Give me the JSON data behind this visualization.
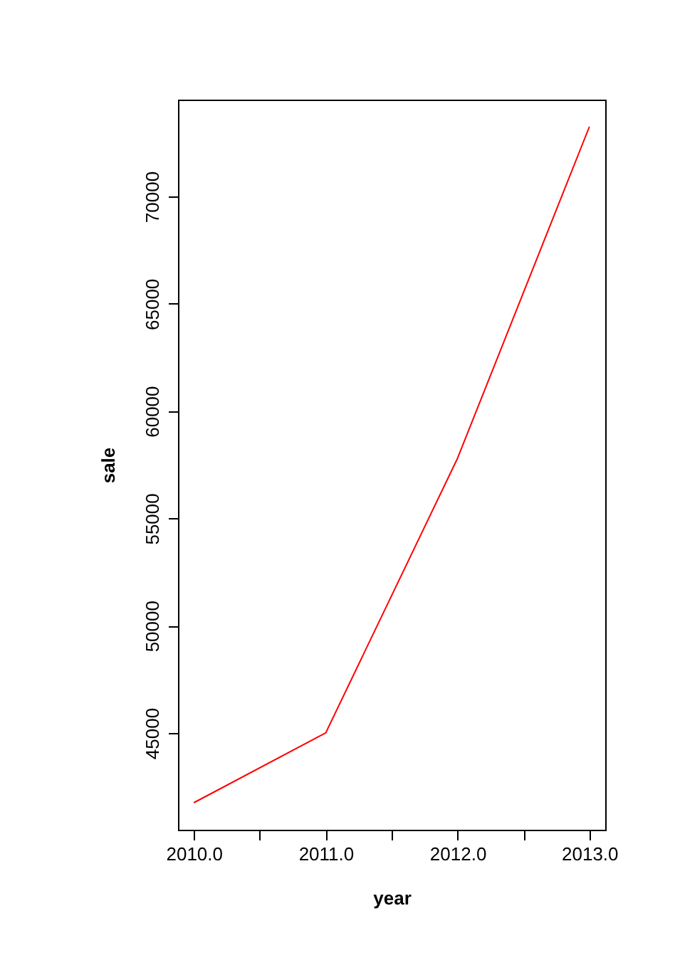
{
  "chart_data": {
    "type": "line",
    "xlabel": "year",
    "ylabel": "sale",
    "x": [
      2010,
      2011,
      2012,
      2013
    ],
    "series": [
      {
        "color": "#ff0000",
        "values": [
          41750,
          45000,
          57800,
          73250
        ]
      }
    ],
    "xlim": [
      2009.88,
      2013.12
    ],
    "ylim": [
      40490,
      74510
    ],
    "xticks": [
      {
        "value": 2010,
        "label": "2010.0"
      },
      {
        "value": 2010.5,
        "label": null
      },
      {
        "value": 2011,
        "label": "2011.0"
      },
      {
        "value": 2011.5,
        "label": null
      },
      {
        "value": 2012,
        "label": "2012.0"
      },
      {
        "value": 2012.5,
        "label": null
      },
      {
        "value": 2013,
        "label": "2013.0"
      }
    ],
    "yticks": [
      45000,
      50000,
      55000,
      60000,
      65000,
      70000
    ],
    "grid": false,
    "marker": "none",
    "line_style": "solid"
  }
}
